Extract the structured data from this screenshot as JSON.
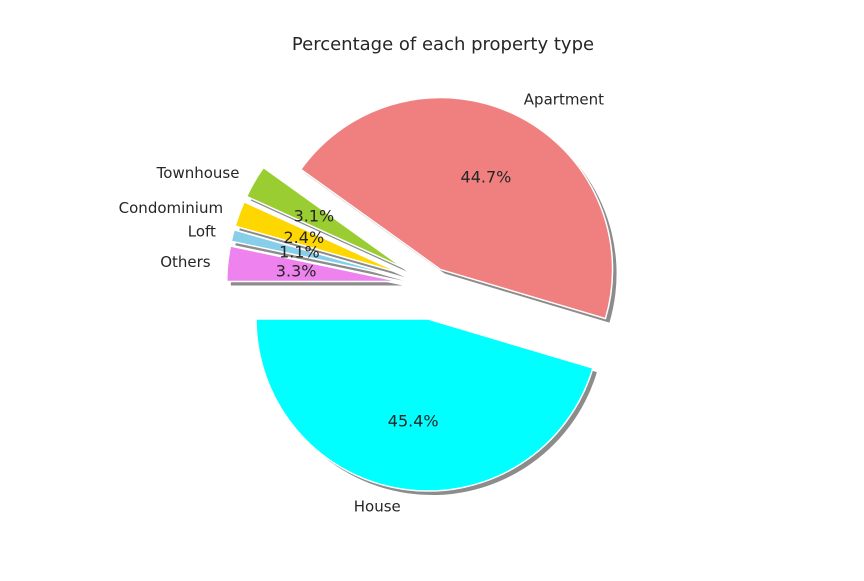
{
  "chart_data": {
    "type": "pie",
    "title": "Percentage of each property type",
    "start_angle_deg": 180,
    "shadow": true,
    "slices": [
      {
        "label": "House",
        "pct_label": "45.4%",
        "value": 45.4,
        "color": "#00FFFF",
        "explode": 0.2
      },
      {
        "label": "Apartment",
        "pct_label": "44.7%",
        "value": 44.7,
        "color": "#F08080",
        "explode": 0.1
      },
      {
        "label": "Townhouse",
        "pct_label": "3.1%",
        "value": 3.1,
        "color": "#9ACD32",
        "explode": 0.2
      },
      {
        "label": "Condominium",
        "pct_label": "2.4%",
        "value": 2.4,
        "color": "#FFD700",
        "explode": 0.2
      },
      {
        "label": "Loft",
        "pct_label": "1.1%",
        "value": 1.1,
        "color": "#87CEEB",
        "explode": 0.2
      },
      {
        "label": "Others",
        "pct_label": "3.3%",
        "value": 3.3,
        "color": "#EE82EE",
        "explode": 0.2
      }
    ]
  }
}
